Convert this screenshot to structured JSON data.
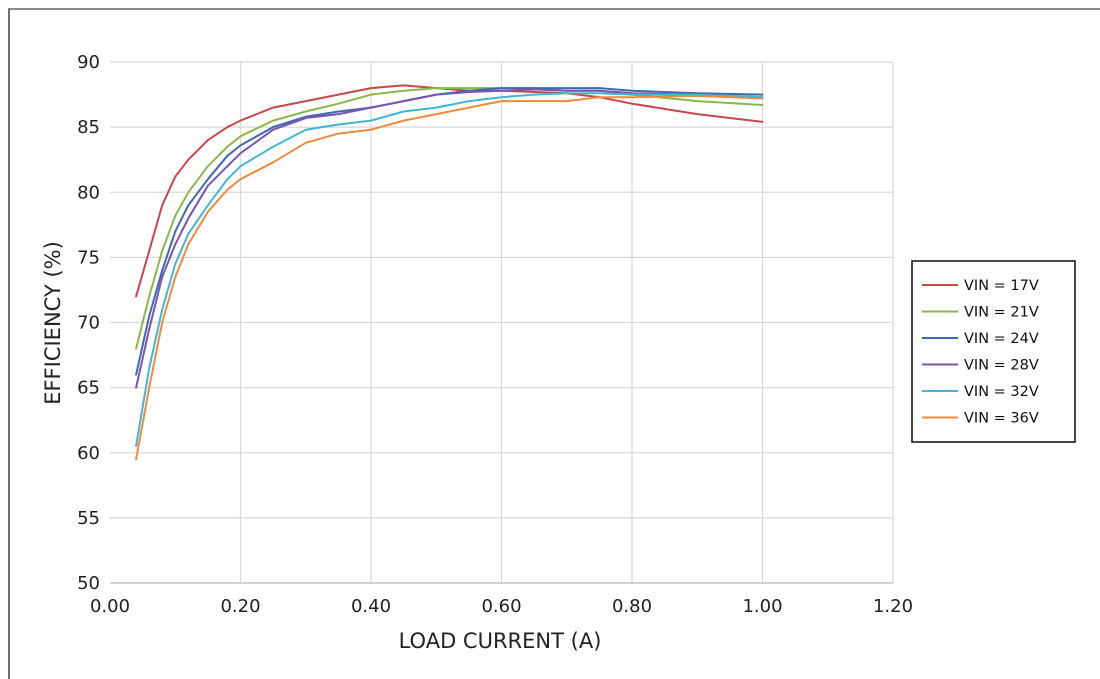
{
  "chart_data": {
    "type": "line",
    "title": "",
    "xlabel": "LOAD CURRENT (A)",
    "ylabel": "EFFICIENCY (%)",
    "xlim": [
      0,
      1.2
    ],
    "ylim": [
      50,
      90
    ],
    "xticks": [
      "0.00",
      "0.20",
      "0.40",
      "0.60",
      "0.80",
      "1.00",
      "1.20"
    ],
    "yticks": [
      "50",
      "55",
      "60",
      "65",
      "70",
      "75",
      "80",
      "85",
      "90"
    ],
    "grid": true,
    "legend_position": "right",
    "series": [
      {
        "name": "VIN = 17V",
        "color": "#c8474c",
        "x": [
          0.04,
          0.06,
          0.08,
          0.1,
          0.12,
          0.15,
          0.18,
          0.2,
          0.25,
          0.3,
          0.35,
          0.4,
          0.45,
          0.5,
          0.55,
          0.6,
          0.65,
          0.7,
          0.75,
          0.8,
          0.9,
          1.0
        ],
        "y": [
          72.0,
          75.5,
          79.0,
          81.2,
          82.5,
          84.0,
          85.0,
          85.5,
          86.5,
          87.0,
          87.5,
          88.0,
          88.2,
          88.0,
          87.8,
          87.8,
          87.7,
          87.6,
          87.3,
          86.8,
          86.0,
          85.4
        ]
      },
      {
        "name": "VIN = 21V",
        "color": "#8ab84a",
        "x": [
          0.04,
          0.06,
          0.08,
          0.1,
          0.12,
          0.15,
          0.18,
          0.2,
          0.25,
          0.3,
          0.35,
          0.4,
          0.45,
          0.5,
          0.55,
          0.6,
          0.65,
          0.7,
          0.75,
          0.8,
          0.9,
          1.0
        ],
        "y": [
          68.0,
          72.0,
          75.5,
          78.2,
          80.0,
          82.0,
          83.5,
          84.3,
          85.5,
          86.2,
          86.8,
          87.5,
          87.8,
          88.0,
          88.0,
          88.0,
          88.0,
          87.8,
          87.8,
          87.5,
          87.0,
          86.7
        ]
      },
      {
        "name": "VIN = 24V",
        "color": "#3d6ab3",
        "x": [
          0.04,
          0.06,
          0.08,
          0.1,
          0.12,
          0.15,
          0.18,
          0.2,
          0.25,
          0.3,
          0.35,
          0.4,
          0.45,
          0.5,
          0.55,
          0.6,
          0.65,
          0.7,
          0.75,
          0.8,
          0.9,
          1.0
        ],
        "y": [
          66.0,
          70.5,
          74.0,
          77.0,
          79.0,
          81.0,
          82.8,
          83.6,
          85.0,
          85.8,
          86.2,
          86.5,
          87.0,
          87.5,
          87.8,
          88.0,
          88.0,
          88.0,
          88.0,
          87.8,
          87.6,
          87.5
        ]
      },
      {
        "name": "VIN = 28V",
        "color": "#7a55b0",
        "x": [
          0.04,
          0.06,
          0.08,
          0.1,
          0.12,
          0.15,
          0.18,
          0.2,
          0.25,
          0.3,
          0.35,
          0.4,
          0.45,
          0.5,
          0.55,
          0.6,
          0.65,
          0.7,
          0.75,
          0.8,
          0.9,
          1.0
        ],
        "y": [
          65.0,
          69.5,
          73.5,
          76.0,
          78.0,
          80.5,
          82.0,
          83.0,
          84.8,
          85.7,
          86.0,
          86.5,
          87.0,
          87.5,
          87.7,
          87.8,
          87.9,
          87.8,
          87.8,
          87.6,
          87.5,
          87.3
        ]
      },
      {
        "name": "VIN = 32V",
        "color": "#42b5d6",
        "x": [
          0.04,
          0.06,
          0.08,
          0.1,
          0.12,
          0.15,
          0.18,
          0.2,
          0.25,
          0.3,
          0.35,
          0.4,
          0.45,
          0.5,
          0.55,
          0.6,
          0.65,
          0.7,
          0.75,
          0.8,
          0.9,
          1.0
        ],
        "y": [
          60.5,
          66.5,
          71.0,
          74.5,
          76.8,
          79.0,
          81.0,
          82.0,
          83.5,
          84.8,
          85.2,
          85.5,
          86.2,
          86.5,
          87.0,
          87.3,
          87.5,
          87.6,
          87.6,
          87.5,
          87.5,
          87.3
        ]
      },
      {
        "name": "VIN = 36V",
        "color": "#f08a3c",
        "x": [
          0.04,
          0.06,
          0.08,
          0.1,
          0.12,
          0.15,
          0.18,
          0.2,
          0.25,
          0.3,
          0.35,
          0.4,
          0.45,
          0.5,
          0.55,
          0.6,
          0.65,
          0.7,
          0.75,
          0.8,
          0.9,
          1.0
        ],
        "y": [
          59.5,
          65.0,
          70.0,
          73.5,
          76.0,
          78.5,
          80.2,
          81.0,
          82.3,
          83.8,
          84.5,
          84.8,
          85.5,
          86.0,
          86.5,
          87.0,
          87.0,
          87.0,
          87.3,
          87.3,
          87.4,
          87.2
        ]
      }
    ]
  }
}
